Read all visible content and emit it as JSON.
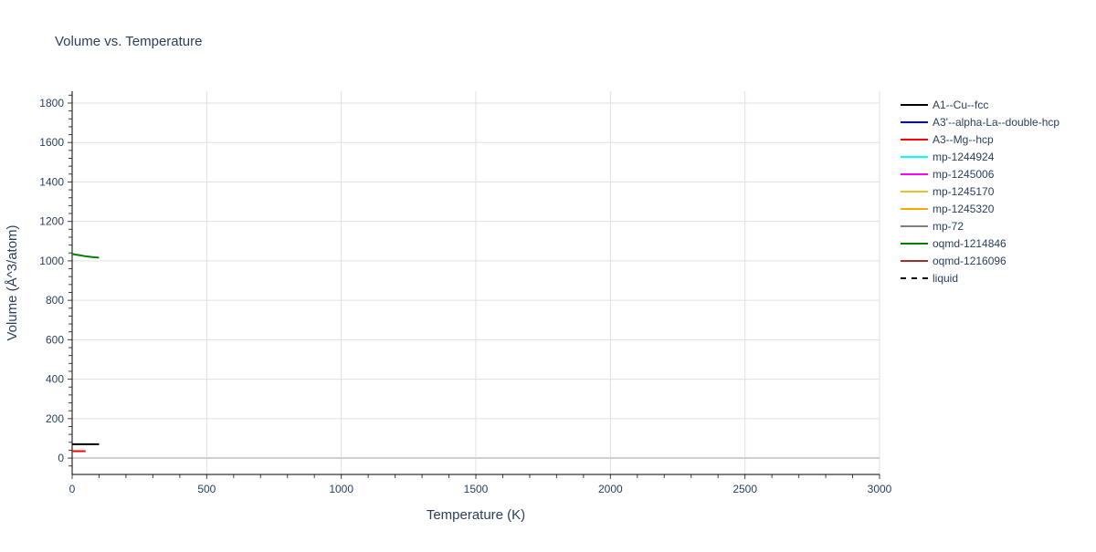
{
  "chart_data": {
    "type": "line",
    "title": "Volume vs. Temperature",
    "xlabel": "Temperature (K)",
    "ylabel": "Volume (Å^3/atom)",
    "xlim": [
      0,
      3000
    ],
    "ylim": [
      -83,
      1860
    ],
    "xticks": [
      0,
      500,
      1000,
      1500,
      2000,
      2500,
      3000
    ],
    "yticks": [
      0,
      200,
      400,
      600,
      800,
      1000,
      1200,
      1400,
      1600,
      1800
    ],
    "grid": true,
    "legend_position": "right",
    "series": [
      {
        "name": "A1--Cu--fcc",
        "color": "#000000",
        "dash": false,
        "x": [
          0,
          50,
          100
        ],
        "y": [
          70,
          70,
          70
        ]
      },
      {
        "name": "A3'--alpha-La--double-hcp",
        "color": "#0000ff",
        "dash": false,
        "x": [],
        "y": []
      },
      {
        "name": "A3--Mg--hcp",
        "color": "#ff0000",
        "dash": false,
        "x": [
          0,
          25,
          50
        ],
        "y": [
          35,
          35,
          35
        ]
      },
      {
        "name": "mp-1244924",
        "color": "#00ffff",
        "dash": false,
        "x": [],
        "y": []
      },
      {
        "name": "mp-1245006",
        "color": "#ff00ff",
        "dash": false,
        "x": [],
        "y": []
      },
      {
        "name": "mp-1245170",
        "color": "#e6c229",
        "dash": false,
        "x": [],
        "y": []
      },
      {
        "name": "mp-1245320",
        "color": "#ffa500",
        "dash": false,
        "x": [],
        "y": []
      },
      {
        "name": "mp-72",
        "color": "#808080",
        "dash": false,
        "x": [],
        "y": []
      },
      {
        "name": "oqmd-1214846",
        "color": "#008000",
        "dash": false,
        "x": [
          0,
          25,
          50,
          75,
          100
        ],
        "y": [
          1035,
          1029,
          1023,
          1019,
          1016
        ]
      },
      {
        "name": "oqmd-1216096",
        "color": "#a52a2a",
        "dash": false,
        "x": [],
        "y": []
      },
      {
        "name": "liquid",
        "color": "#000000",
        "dash": true,
        "x": [],
        "y": []
      }
    ]
  }
}
